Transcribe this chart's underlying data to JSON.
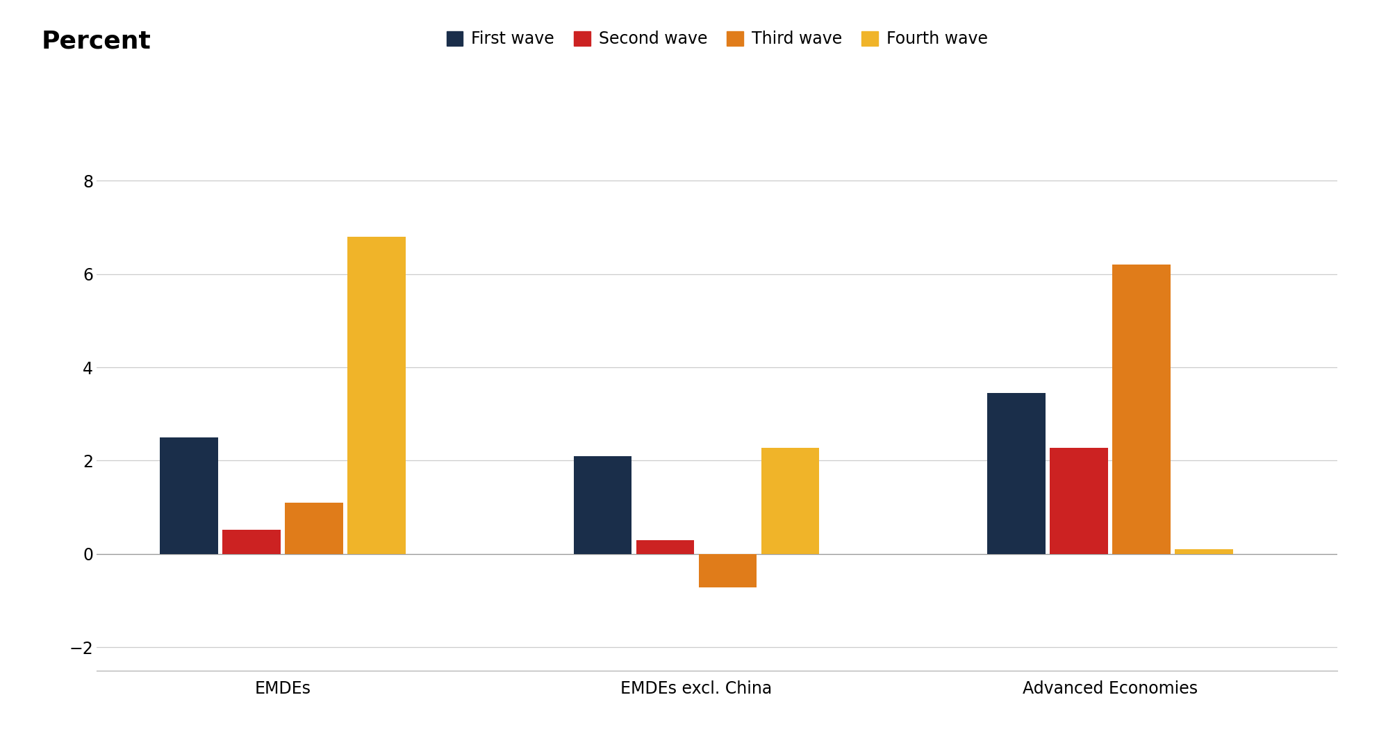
{
  "title": "Percent",
  "categories": [
    "EMDEs",
    "EMDEs excl. China",
    "Advanced Economies"
  ],
  "series": {
    "First wave": [
      2.5,
      2.1,
      3.45
    ],
    "Second wave": [
      0.52,
      0.3,
      2.28
    ],
    "Third wave": [
      1.1,
      -0.72,
      6.2
    ],
    "Fourth wave": [
      6.8,
      2.28,
      0.1
    ]
  },
  "colors": {
    "First wave": "#1a2e4a",
    "Second wave": "#cc2222",
    "Third wave": "#e07c1a",
    "Fourth wave": "#f0b429"
  },
  "ylim": [
    -2.5,
    9.0
  ],
  "yticks": [
    -2,
    0,
    2,
    4,
    6,
    8
  ],
  "bar_width": 0.14,
  "group_positions": [
    0.35,
    1.35,
    2.35
  ],
  "background_color": "#ffffff",
  "title_fontsize": 26,
  "tick_fontsize": 17,
  "legend_fontsize": 17,
  "xtick_fontsize": 17
}
